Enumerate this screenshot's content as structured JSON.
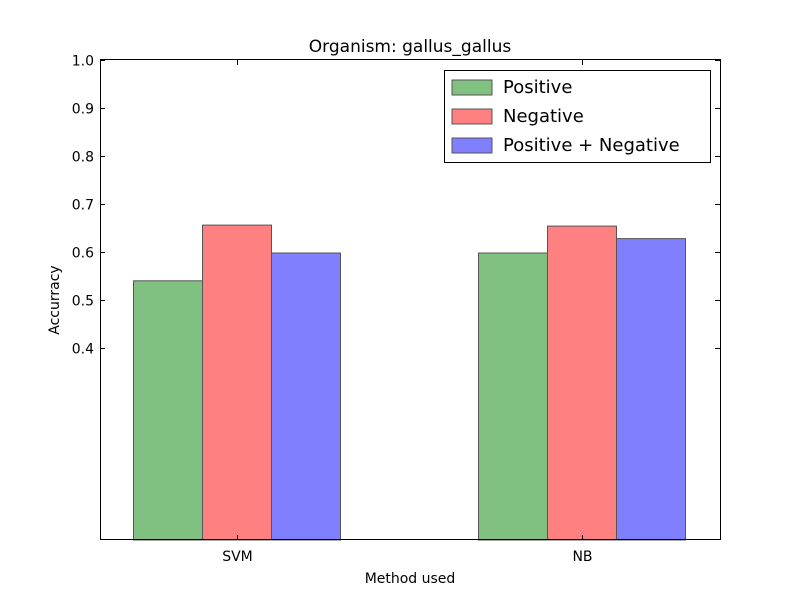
{
  "chart_data": {
    "type": "bar",
    "title": "Organism: gallus_gallus",
    "xlabel": "Method used",
    "ylabel": "Accurracy",
    "categories": [
      "SVM",
      "NB"
    ],
    "series": [
      {
        "name": "Positive",
        "color": "#80c080",
        "values": [
          0.54,
          0.598
        ]
      },
      {
        "name": "Negative",
        "color": "#ff8080",
        "values": [
          0.656,
          0.654
        ]
      },
      {
        "name": "Positive + Negative",
        "color": "#8080ff",
        "values": [
          0.598,
          0.628
        ]
      }
    ],
    "ylim": [
      0.0,
      1.0
    ],
    "yticks": [
      "0.4",
      "0.5",
      "0.6",
      "0.7",
      "0.8",
      "0.9",
      "1.0"
    ],
    "grid": false,
    "legend_position": "top-right"
  }
}
